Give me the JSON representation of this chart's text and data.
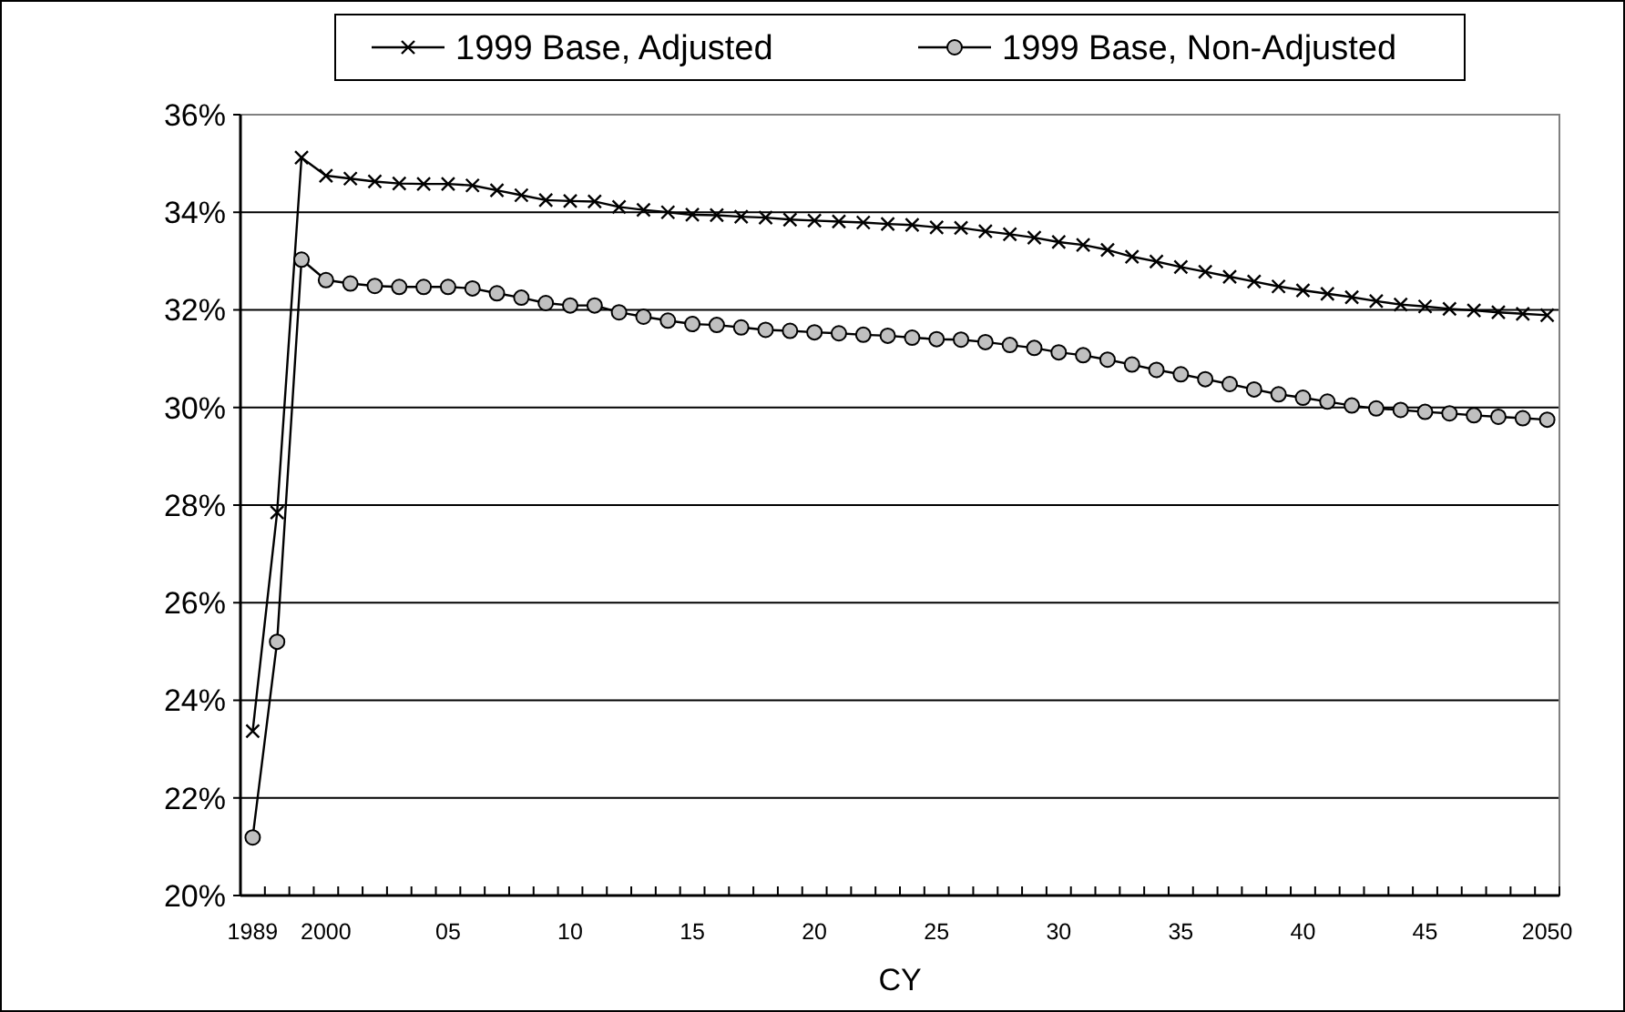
{
  "chart_data": {
    "type": "line",
    "xlabel": "CY",
    "categories": [
      "1989",
      null,
      null,
      "2000",
      null,
      null,
      null,
      null,
      "05",
      null,
      null,
      null,
      null,
      "10",
      null,
      null,
      null,
      null,
      "15",
      null,
      null,
      null,
      null,
      "20",
      null,
      null,
      null,
      null,
      "25",
      null,
      null,
      null,
      null,
      "30",
      null,
      null,
      null,
      null,
      "35",
      null,
      null,
      null,
      null,
      "40",
      null,
      null,
      null,
      null,
      "45",
      null,
      null,
      null,
      null,
      "2050"
    ],
    "series": [
      {
        "name": "1999 Base, Adjusted",
        "color": "#000000",
        "marker": "cross",
        "values": [
          23.37,
          27.85,
          35.12,
          34.75,
          34.69,
          34.63,
          34.59,
          34.58,
          34.58,
          34.55,
          34.45,
          34.35,
          34.25,
          34.23,
          34.22,
          34.11,
          34.05,
          34.0,
          33.95,
          33.94,
          33.91,
          33.89,
          33.85,
          33.83,
          33.81,
          33.79,
          33.76,
          33.74,
          33.69,
          33.68,
          33.61,
          33.55,
          33.48,
          33.39,
          33.33,
          33.23,
          33.09,
          32.99,
          32.88,
          32.78,
          32.68,
          32.58,
          32.48,
          32.4,
          32.33,
          32.26,
          32.18,
          32.11,
          32.07,
          32.02,
          31.99,
          31.95,
          31.92,
          31.89
        ]
      },
      {
        "name": "1999 Base, Non-Adjusted",
        "color": "#000000",
        "marker": "circle",
        "values": [
          21.19,
          25.2,
          33.03,
          32.61,
          32.54,
          32.49,
          32.47,
          32.47,
          32.47,
          32.44,
          32.34,
          32.25,
          32.14,
          32.09,
          32.09,
          31.95,
          31.86,
          31.78,
          31.71,
          31.69,
          31.64,
          31.59,
          31.57,
          31.54,
          31.52,
          31.49,
          31.47,
          31.43,
          31.4,
          31.39,
          31.34,
          31.28,
          31.22,
          31.13,
          31.07,
          30.98,
          30.88,
          30.77,
          30.68,
          30.58,
          30.48,
          30.37,
          30.27,
          30.2,
          30.12,
          30.04,
          29.98,
          29.95,
          29.91,
          29.88,
          29.84,
          29.81,
          29.78,
          29.75
        ]
      }
    ],
    "ylim": [
      20,
      36
    ],
    "yticks": [
      {
        "value": 20,
        "label": "20%"
      },
      {
        "value": 22,
        "label": "22%"
      },
      {
        "value": 24,
        "label": "24%"
      },
      {
        "value": 26,
        "label": "26%"
      },
      {
        "value": 28,
        "label": "28%"
      },
      {
        "value": 30,
        "label": "30%"
      },
      {
        "value": 32,
        "label": "32%"
      },
      {
        "value": 34,
        "label": "34%"
      },
      {
        "value": 36,
        "label": "36%"
      }
    ],
    "grid": "y",
    "legend": "top",
    "line_style": "solid"
  }
}
